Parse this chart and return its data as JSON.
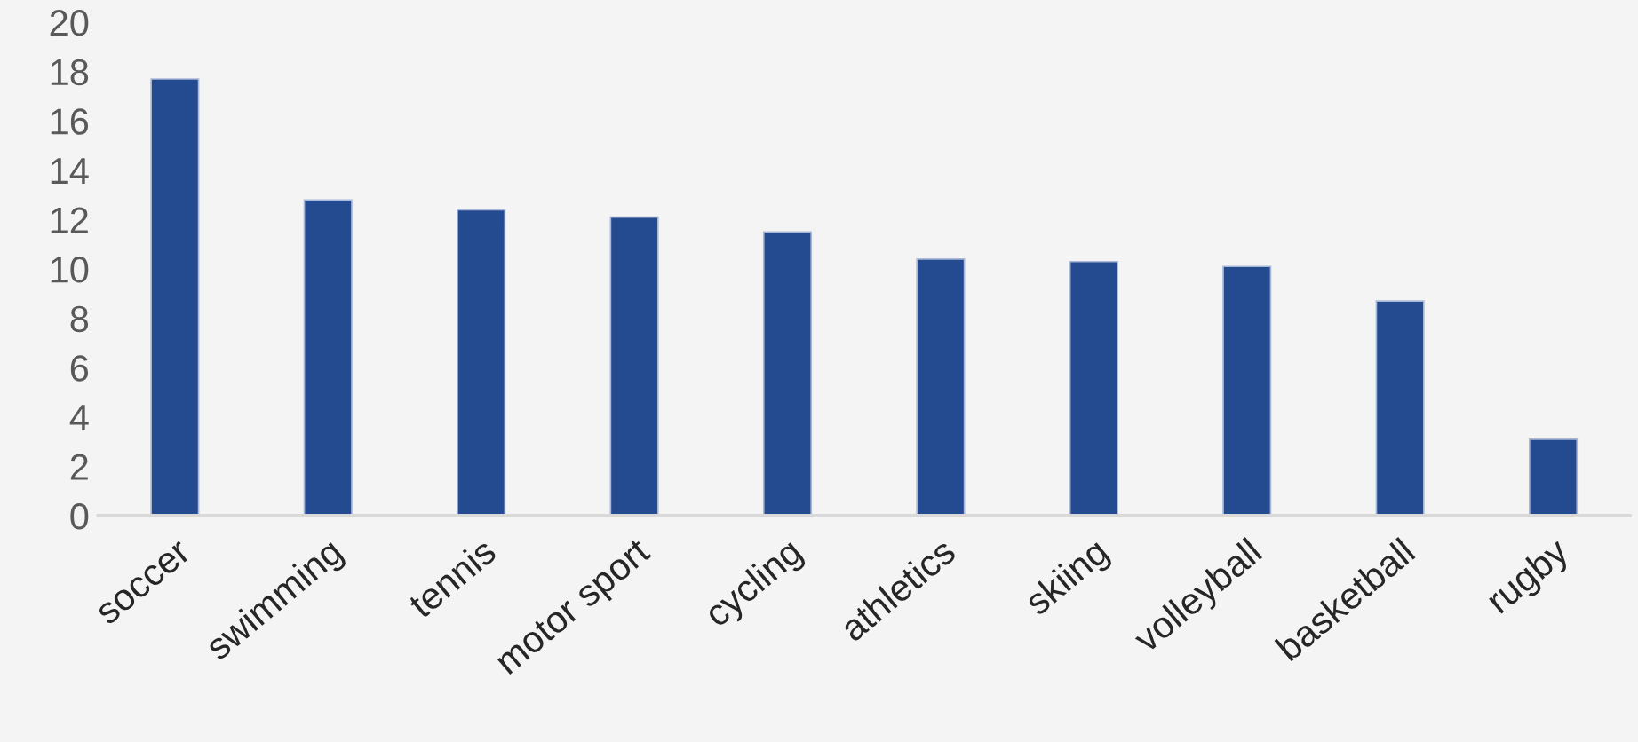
{
  "chart_data": {
    "type": "bar",
    "categories": [
      "soccer",
      "swimming",
      "tennis",
      "motor sport",
      "cycling",
      "athletics",
      "skiing",
      "volleyball",
      "basketball",
      "rugby"
    ],
    "values": [
      17.7,
      12.8,
      12.4,
      12.1,
      11.5,
      10.4,
      10.3,
      10.1,
      8.7,
      3.1
    ],
    "color": "#244a8f",
    "ylim": [
      0,
      20
    ],
    "yticks": [
      0,
      2,
      4,
      6,
      8,
      10,
      12,
      14,
      16,
      18,
      20
    ],
    "grid": false
  }
}
